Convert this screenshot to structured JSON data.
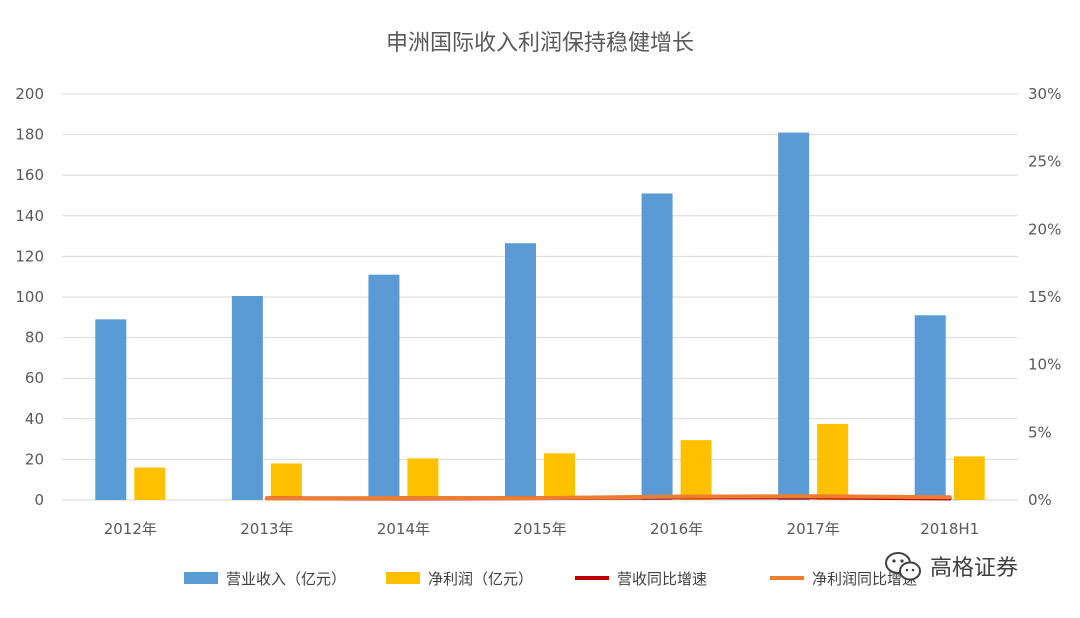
{
  "chart_data": {
    "type": "bar",
    "title": "申洲国际收入利润保持稳健增长",
    "categories": [
      "2012年",
      "2013年",
      "2014年",
      "2015年",
      "2016年",
      "2017年",
      "2018H1"
    ],
    "y_left": {
      "range": [
        0,
        200
      ],
      "ticks": [
        "0",
        "20",
        "40",
        "60",
        "80",
        "100",
        "120",
        "140",
        "160",
        "180",
        "200"
      ]
    },
    "y_right": {
      "range": [
        0,
        30
      ],
      "ticks": [
        "0%",
        "5%",
        "10%",
        "15%",
        "20%",
        "25%",
        "30%"
      ]
    },
    "grid": true,
    "legend_position": "bottom",
    "series": [
      {
        "name": "营业收入（亿元）",
        "kind": "bar",
        "axis": "left",
        "color": "#5B9BD5",
        "values": [
          89,
          100.5,
          111,
          126.5,
          151,
          181,
          91
        ]
      },
      {
        "name": "净利润（亿元）",
        "kind": "bar",
        "axis": "left",
        "color": "#FFC000",
        "values": [
          16,
          18,
          20.5,
          23,
          29.5,
          37.5,
          21.5
        ]
      },
      {
        "name": "营收同比增速",
        "kind": "line",
        "axis": "right",
        "color": "#C00000",
        "values": [
          null,
          0.125,
          0.108,
          0.135,
          0.195,
          0.198,
          0.108
        ]
      },
      {
        "name": "净利润同比增速",
        "kind": "line",
        "axis": "right",
        "color": "#ED7D31",
        "values": [
          null,
          0.113,
          0.145,
          0.14,
          0.252,
          0.276,
          0.206
        ]
      }
    ]
  },
  "watermark": {
    "text": "高格证券",
    "icon": "wechat-icon"
  }
}
